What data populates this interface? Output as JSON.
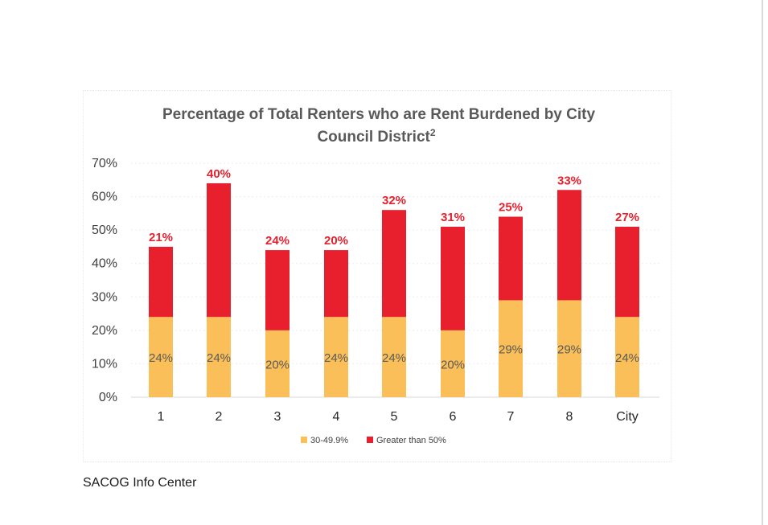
{
  "chart_data": {
    "type": "bar",
    "stacked": true,
    "title_line1": "Percentage of Total Renters who are Rent Burdened by City",
    "title_line2": "Council District",
    "title_superscript": "2",
    "categories": [
      "1",
      "2",
      "3",
      "4",
      "5",
      "6",
      "7",
      "8",
      "City"
    ],
    "ylim": [
      0,
      70
    ],
    "yticks": [
      "0%",
      "10%",
      "20%",
      "30%",
      "40%",
      "50%",
      "60%",
      "70%"
    ],
    "legend_position": "bottom",
    "series": [
      {
        "name": "30-49.9%",
        "color": "#fbbf59",
        "values": [
          24,
          24,
          20,
          24,
          24,
          20,
          29,
          29,
          24
        ],
        "labels": [
          "24%",
          "24%",
          "20%",
          "24%",
          "24%",
          "20%",
          "29%",
          "29%",
          "24%"
        ]
      },
      {
        "name": "Greater than 50%",
        "color": "#e8202d",
        "values": [
          21,
          40,
          24,
          20,
          32,
          31,
          25,
          33,
          27
        ],
        "labels": [
          "21%",
          "40%",
          "24%",
          "20%",
          "32%",
          "31%",
          "25%",
          "33%",
          "27%"
        ]
      }
    ]
  },
  "footer": {
    "source": "SACOG Info Center"
  }
}
